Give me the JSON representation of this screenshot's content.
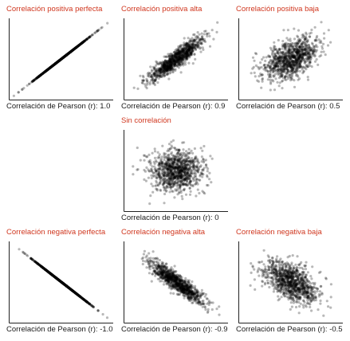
{
  "figure": {
    "marker_color": "#000000",
    "title_color": "#d0371f"
  },
  "chart_data": [
    {
      "id": "c1",
      "type": "scatter",
      "title": "Correlación positiva perfecta",
      "caption_label": "Correlación de Pearson (r):",
      "r_label": "1.0",
      "r": 1.0,
      "points": 1000,
      "xlabel": "",
      "ylabel": "",
      "grid": false
    },
    {
      "id": "c2",
      "type": "scatter",
      "title": "Correlación positiva alta",
      "caption_label": "Correlación de Pearson (r):",
      "r_label": "0.9",
      "r": 0.9,
      "points": 1000,
      "xlabel": "",
      "ylabel": "",
      "grid": false
    },
    {
      "id": "c3",
      "type": "scatter",
      "title": "Correlación positiva baja",
      "caption_label": "Correlación de Pearson (r):",
      "r_label": "0.5",
      "r": 0.5,
      "points": 1000,
      "xlabel": "",
      "ylabel": "",
      "grid": false
    },
    {
      "id": "c4",
      "type": "scatter",
      "title": "Sin correlación",
      "caption_label": "Correlación de Pearson (r):",
      "r_label": "0",
      "r": 0.0,
      "points": 1000,
      "xlabel": "",
      "ylabel": "",
      "grid": false
    },
    {
      "id": "c5",
      "type": "scatter",
      "title": "Correlación negativa perfecta",
      "caption_label": "Correlación de Pearson (r):",
      "r_label": "-1.0",
      "r": -1.0,
      "points": 1000,
      "xlabel": "",
      "ylabel": "",
      "grid": false
    },
    {
      "id": "c6",
      "type": "scatter",
      "title": "Correlación negativa alta",
      "caption_label": "Correlación de Pearson (r):",
      "r_label": "-0.9",
      "r": -0.9,
      "points": 1000,
      "xlabel": "",
      "ylabel": "",
      "grid": false
    },
    {
      "id": "c7",
      "type": "scatter",
      "title": "Correlación negativa baja",
      "caption_label": "Correlación de Pearson (r):",
      "r_label": "-0.5",
      "r": -0.5,
      "points": 1000,
      "xlabel": "",
      "ylabel": "",
      "grid": false
    }
  ]
}
